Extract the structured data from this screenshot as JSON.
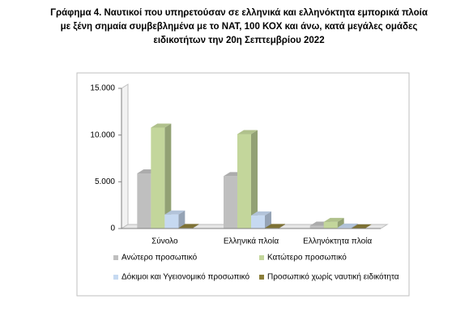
{
  "chart_data": {
    "type": "bar",
    "title": "Γράφημα 4. Ναυτικοί που υπηρετούσαν σε ελληνικά και ελληνόκτητα εμπορικά πλοία με ξένη σημαία συμβεβλημένα με το NAT, 100 ΚΟΧ και άνω, κατά μεγάλες ομάδες ειδικοτήτων την 20η Σεπτεμβρίου 2022",
    "categories": [
      "Σύνολο",
      "Ελληνικά πλοία",
      "Ελληνόκτητα πλοία"
    ],
    "series": [
      {
        "name": "Ανώτερο προσωπικό",
        "color": "#bfbfbf",
        "values": [
          5900,
          5600,
          300
        ]
      },
      {
        "name": "Κατώτερο προσωπικό",
        "color": "#c3d69b",
        "values": [
          10800,
          10100,
          700
        ]
      },
      {
        "name": "Δόκιμοι και Υγειονομικό προσωπικό",
        "color": "#c6d9f1",
        "values": [
          1500,
          1400,
          100
        ]
      },
      {
        "name": "Προσωπικό χωρίς ναυτική ειδικότητα",
        "color": "#8b7e3a",
        "values": [
          50,
          50,
          10
        ]
      }
    ],
    "ylim": [
      0,
      15000
    ],
    "yticks": [
      0,
      {
        "value": 5000,
        "label": "5.000"
      },
      {
        "value": 10000,
        "label": "10.000"
      },
      {
        "value": 15000,
        "label": "15.000"
      }
    ],
    "grid": false
  }
}
